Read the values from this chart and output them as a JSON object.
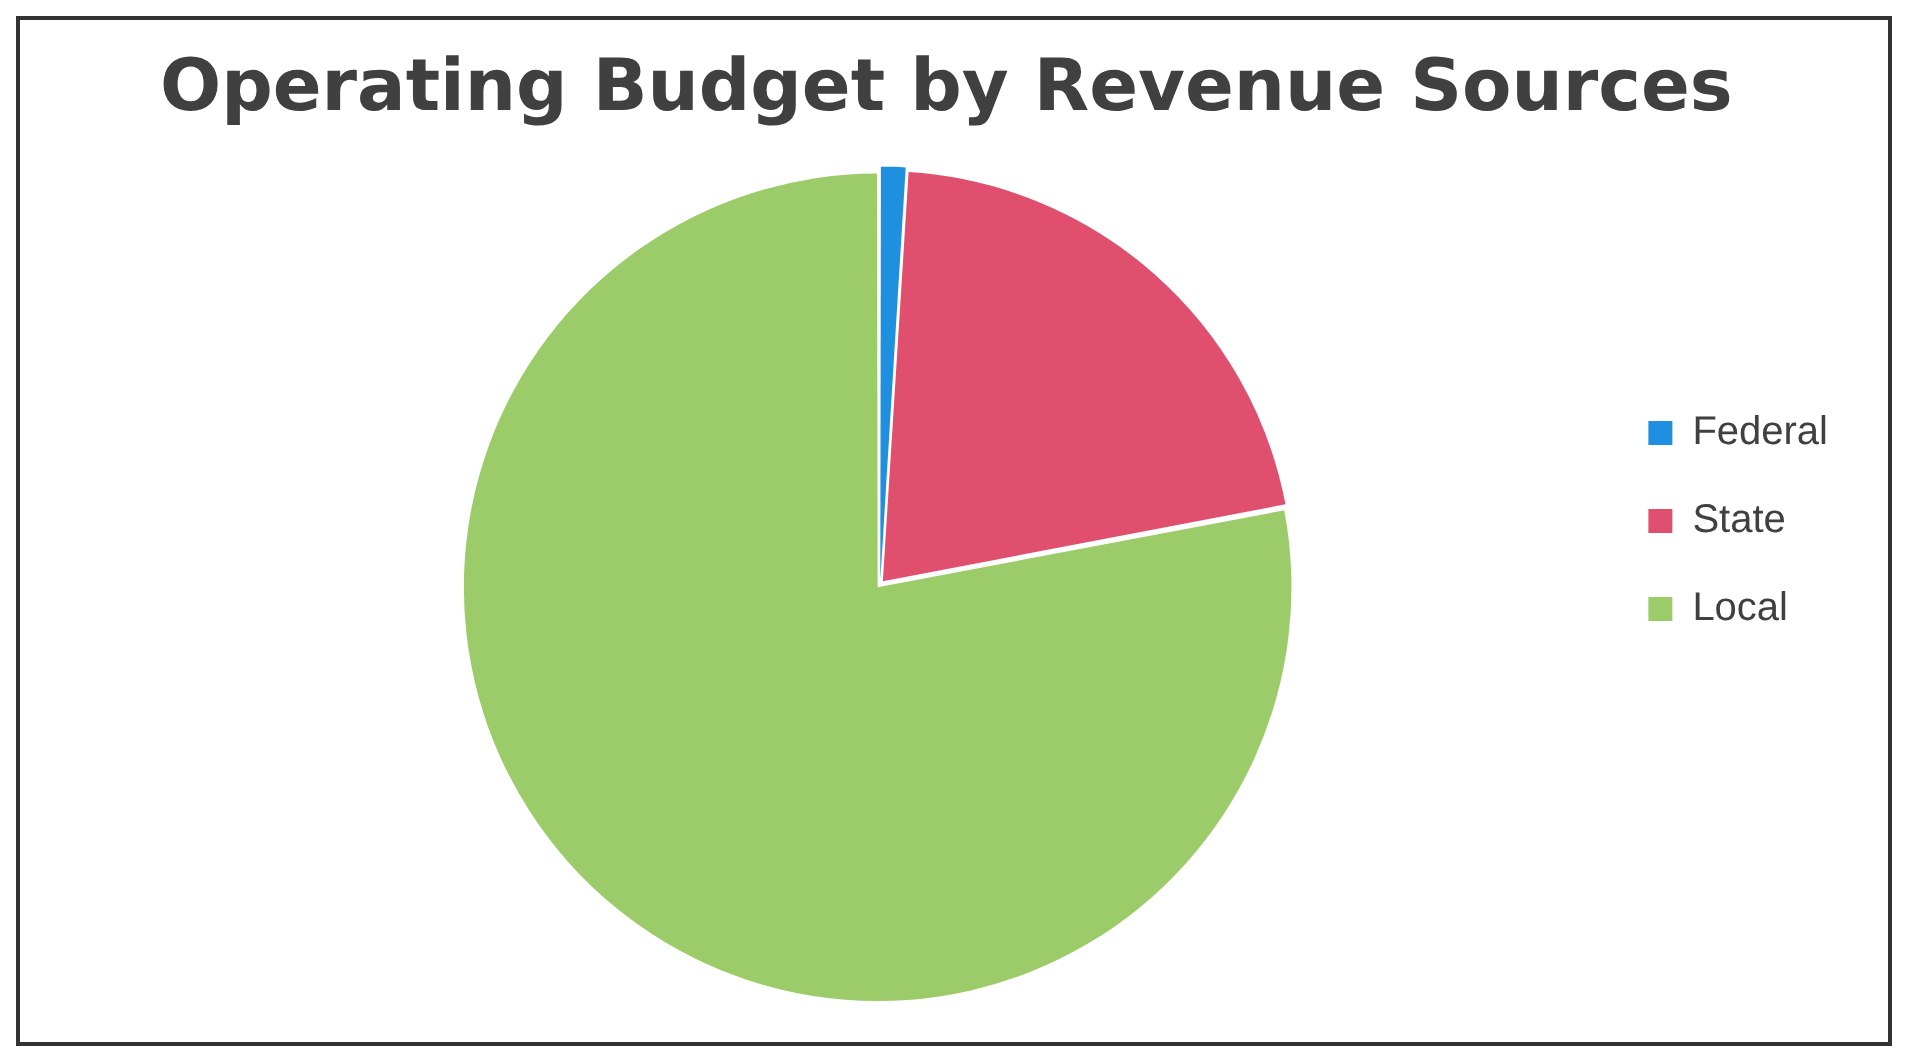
{
  "chart_data": {
    "type": "pie",
    "title": "Operating Budget by Revenue Sources",
    "categories": [
      "Federal",
      "State",
      "Local"
    ],
    "values": [
      1,
      21,
      78
    ],
    "colors": [
      "#1f8fe0",
      "#e0506e",
      "#9ccc6a"
    ],
    "legend": "right"
  }
}
